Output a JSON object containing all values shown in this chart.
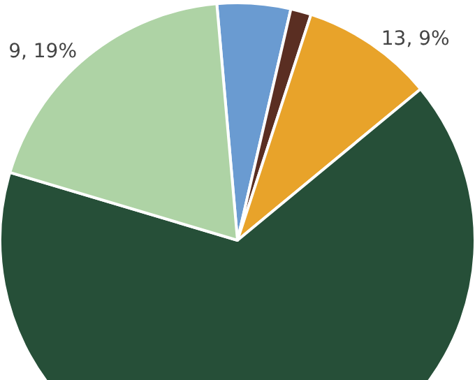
{
  "chart_data": {
    "type": "pie",
    "categories": [
      null,
      null,
      null,
      null,
      null
    ],
    "values": [
      5,
      1.4,
      9,
      65.6,
      19
    ],
    "colors": [
      "#6a9bd1",
      "#5a2e22",
      "#e8a32a",
      "#264f38",
      "#aed3a5"
    ],
    "value_labels": [
      null,
      null,
      "13, 9%",
      null,
      "9, 19%"
    ]
  }
}
